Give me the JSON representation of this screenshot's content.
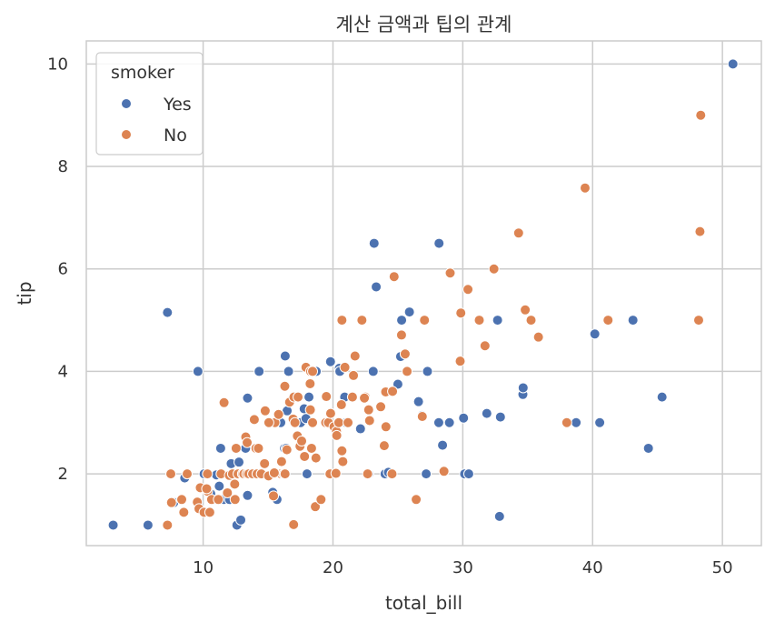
{
  "chart_data": {
    "type": "scatter",
    "title": "계산 금액과 팁의 관계",
    "xlabel": "total_bill",
    "ylabel": "tip",
    "xlim": [
      1.0,
      53.0
    ],
    "ylim": [
      0.6,
      10.45
    ],
    "x_ticks": [
      10,
      20,
      30,
      40,
      50
    ],
    "y_ticks": [
      2,
      4,
      6,
      8,
      10
    ],
    "grid": true,
    "legend": {
      "title": "smoker",
      "placement": "top-left",
      "entries": [
        "Yes",
        "No"
      ]
    },
    "series": [
      {
        "name": "Yes",
        "color": "#4c72b0",
        "points": [
          [
            3.07,
            1.0
          ],
          [
            5.75,
            1.0
          ],
          [
            7.25,
            5.15
          ],
          [
            7.74,
            1.44
          ],
          [
            8.58,
            1.92
          ],
          [
            9.6,
            4.0
          ],
          [
            10.07,
            2.0
          ],
          [
            10.59,
            1.61
          ],
          [
            11.02,
            1.98
          ],
          [
            11.24,
            1.76
          ],
          [
            11.35,
            2.5
          ],
          [
            11.59,
            1.5
          ],
          [
            12.16,
            2.2
          ],
          [
            12.6,
            1.0
          ],
          [
            12.74,
            2.01
          ],
          [
            12.76,
            2.23
          ],
          [
            12.9,
            1.1
          ],
          [
            13.0,
            2.0
          ],
          [
            13.27,
            2.5
          ],
          [
            13.42,
            1.58
          ],
          [
            13.42,
            3.48
          ],
          [
            13.81,
            2.0
          ],
          [
            14.31,
            4.0
          ],
          [
            15.36,
            1.64
          ],
          [
            15.48,
            2.02
          ],
          [
            15.69,
            1.5
          ],
          [
            15.69,
            3.0
          ],
          [
            15.98,
            3.0
          ],
          [
            16.27,
            2.5
          ],
          [
            16.4,
            2.5
          ],
          [
            16.47,
            3.23
          ],
          [
            16.32,
            4.3
          ],
          [
            16.58,
            4.0
          ],
          [
            17.29,
            3.0
          ],
          [
            17.51,
            3.0
          ],
          [
            17.78,
            3.27
          ],
          [
            17.92,
            3.08
          ],
          [
            18.15,
            3.5
          ],
          [
            18.71,
            4.0
          ],
          [
            19.44,
            3.0
          ],
          [
            19.81,
            4.19
          ],
          [
            20.49,
            4.06
          ],
          [
            20.53,
            4.0
          ],
          [
            20.9,
            3.5
          ],
          [
            21.01,
            3.0
          ],
          [
            22.12,
            2.88
          ],
          [
            22.42,
            3.48
          ],
          [
            22.76,
            2.0
          ],
          [
            23.17,
            6.5
          ],
          [
            23.33,
            5.65
          ],
          [
            24.01,
            2.0
          ],
          [
            24.27,
            2.03
          ],
          [
            25.0,
            3.75
          ],
          [
            25.21,
            4.29
          ],
          [
            25.29,
            5.0
          ],
          [
            25.89,
            5.16
          ],
          [
            26.59,
            3.41
          ],
          [
            26.86,
            3.14
          ],
          [
            27.18,
            2.0
          ],
          [
            27.28,
            4.0
          ],
          [
            28.17,
            6.5
          ],
          [
            28.15,
            3.0
          ],
          [
            28.44,
            2.56
          ],
          [
            28.97,
            3.0
          ],
          [
            30.06,
            3.09
          ],
          [
            30.14,
            2.0
          ],
          [
            30.46,
            2.0
          ],
          [
            31.85,
            3.18
          ],
          [
            32.68,
            5.0
          ],
          [
            32.83,
            1.17
          ],
          [
            32.9,
            3.11
          ],
          [
            34.63,
            3.55
          ],
          [
            34.65,
            3.68
          ],
          [
            38.07,
            3.0
          ],
          [
            38.73,
            3.0
          ],
          [
            40.17,
            4.73
          ],
          [
            40.55,
            3.0
          ],
          [
            43.11,
            5.0
          ],
          [
            44.3,
            2.5
          ],
          [
            45.35,
            3.5
          ],
          [
            50.81,
            10.0
          ],
          [
            23.1,
            4.0
          ],
          [
            12.03,
            1.5
          ],
          [
            9.55,
            1.45
          ],
          [
            18.0,
            2.0
          ]
        ]
      },
      {
        "name": "No",
        "color": "#dd8452",
        "points": [
          [
            7.25,
            1.0
          ],
          [
            7.51,
            2.0
          ],
          [
            7.56,
            1.44
          ],
          [
            8.35,
            1.5
          ],
          [
            8.51,
            1.25
          ],
          [
            8.77,
            2.0
          ],
          [
            9.55,
            1.45
          ],
          [
            9.68,
            1.32
          ],
          [
            9.78,
            1.73
          ],
          [
            10.07,
            1.25
          ],
          [
            10.33,
            2.0
          ],
          [
            10.34,
            1.66
          ],
          [
            10.51,
            1.25
          ],
          [
            10.65,
            1.5
          ],
          [
            11.17,
            1.5
          ],
          [
            11.38,
            2.0
          ],
          [
            11.61,
            3.39
          ],
          [
            11.87,
            1.63
          ],
          [
            12.02,
            1.97
          ],
          [
            12.26,
            2.0
          ],
          [
            12.43,
            1.8
          ],
          [
            12.46,
            1.5
          ],
          [
            12.54,
            2.5
          ],
          [
            12.69,
            2.0
          ],
          [
            13.03,
            2.0
          ],
          [
            13.13,
            2.0
          ],
          [
            13.28,
            2.72
          ],
          [
            13.37,
            2.0
          ],
          [
            13.39,
            2.61
          ],
          [
            13.51,
            2.0
          ],
          [
            13.81,
            2.0
          ],
          [
            13.94,
            3.06
          ],
          [
            14.07,
            2.5
          ],
          [
            14.15,
            2.0
          ],
          [
            14.26,
            2.5
          ],
          [
            14.48,
            2.0
          ],
          [
            14.73,
            2.2
          ],
          [
            14.78,
            3.23
          ],
          [
            15.04,
            1.96
          ],
          [
            15.38,
            3.0
          ],
          [
            15.42,
            1.57
          ],
          [
            15.53,
            3.0
          ],
          [
            15.81,
            3.16
          ],
          [
            15.95,
            2.0
          ],
          [
            16.0,
            2.0
          ],
          [
            16.21,
            2.0
          ],
          [
            16.29,
            3.71
          ],
          [
            16.31,
            2.0
          ],
          [
            16.45,
            2.47
          ],
          [
            16.66,
            3.4
          ],
          [
            16.93,
            3.07
          ],
          [
            16.97,
            1.01
          ],
          [
            16.99,
            3.5
          ],
          [
            17.07,
            3.0
          ],
          [
            17.26,
            2.74
          ],
          [
            17.31,
            3.5
          ],
          [
            17.46,
            2.54
          ],
          [
            17.59,
            2.64
          ],
          [
            17.81,
            2.34
          ],
          [
            17.92,
            4.08
          ],
          [
            18.24,
            3.76
          ],
          [
            18.26,
            3.25
          ],
          [
            18.28,
            4.0
          ],
          [
            18.29,
            2.5
          ],
          [
            18.35,
            2.5
          ],
          [
            18.43,
            3.0
          ],
          [
            18.64,
            1.36
          ],
          [
            18.69,
            2.31
          ],
          [
            19.08,
            1.5
          ],
          [
            19.44,
            3.0
          ],
          [
            19.49,
            3.51
          ],
          [
            19.65,
            3.0
          ],
          [
            19.77,
            2.0
          ],
          [
            19.82,
            3.18
          ],
          [
            20.08,
            2.92
          ],
          [
            20.23,
            2.01
          ],
          [
            20.27,
            2.83
          ],
          [
            20.29,
            2.75
          ],
          [
            20.45,
            3.0
          ],
          [
            20.65,
            3.35
          ],
          [
            20.69,
            2.45
          ],
          [
            20.92,
            4.08
          ],
          [
            20.76,
            2.24
          ],
          [
            21.16,
            3.0
          ],
          [
            21.5,
            3.5
          ],
          [
            21.58,
            3.92
          ],
          [
            21.7,
            4.3
          ],
          [
            22.23,
            5.0
          ],
          [
            22.49,
            3.5
          ],
          [
            22.67,
            2.0
          ],
          [
            22.75,
            3.25
          ],
          [
            22.82,
            3.04
          ],
          [
            23.68,
            3.31
          ],
          [
            24.06,
            3.6
          ],
          [
            24.08,
            2.92
          ],
          [
            24.55,
            2.0
          ],
          [
            24.59,
            3.61
          ],
          [
            24.71,
            5.85
          ],
          [
            25.28,
            4.71
          ],
          [
            25.56,
            4.34
          ],
          [
            25.71,
            4.0
          ],
          [
            26.41,
            1.5
          ],
          [
            26.88,
            3.12
          ],
          [
            27.05,
            5.0
          ],
          [
            28.55,
            2.05
          ],
          [
            29.03,
            5.92
          ],
          [
            29.8,
            4.2
          ],
          [
            29.85,
            5.14
          ],
          [
            30.4,
            5.6
          ],
          [
            31.27,
            5.0
          ],
          [
            31.71,
            4.5
          ],
          [
            32.4,
            6.0
          ],
          [
            34.3,
            6.7
          ],
          [
            34.81,
            5.2
          ],
          [
            35.26,
            5.0
          ],
          [
            35.83,
            4.67
          ],
          [
            38.01,
            3.0
          ],
          [
            39.42,
            7.58
          ],
          [
            41.19,
            5.0
          ],
          [
            48.17,
            5.0
          ],
          [
            48.27,
            6.73
          ],
          [
            48.33,
            9.0
          ],
          [
            23.95,
            2.55
          ],
          [
            22.42,
            3.48
          ],
          [
            10.27,
            1.71
          ],
          [
            15.06,
            3.0
          ],
          [
            18.43,
            4.0
          ],
          [
            15.48,
            2.02
          ],
          [
            16.04,
            2.24
          ],
          [
            20.69,
            5.0
          ]
        ]
      }
    ]
  }
}
